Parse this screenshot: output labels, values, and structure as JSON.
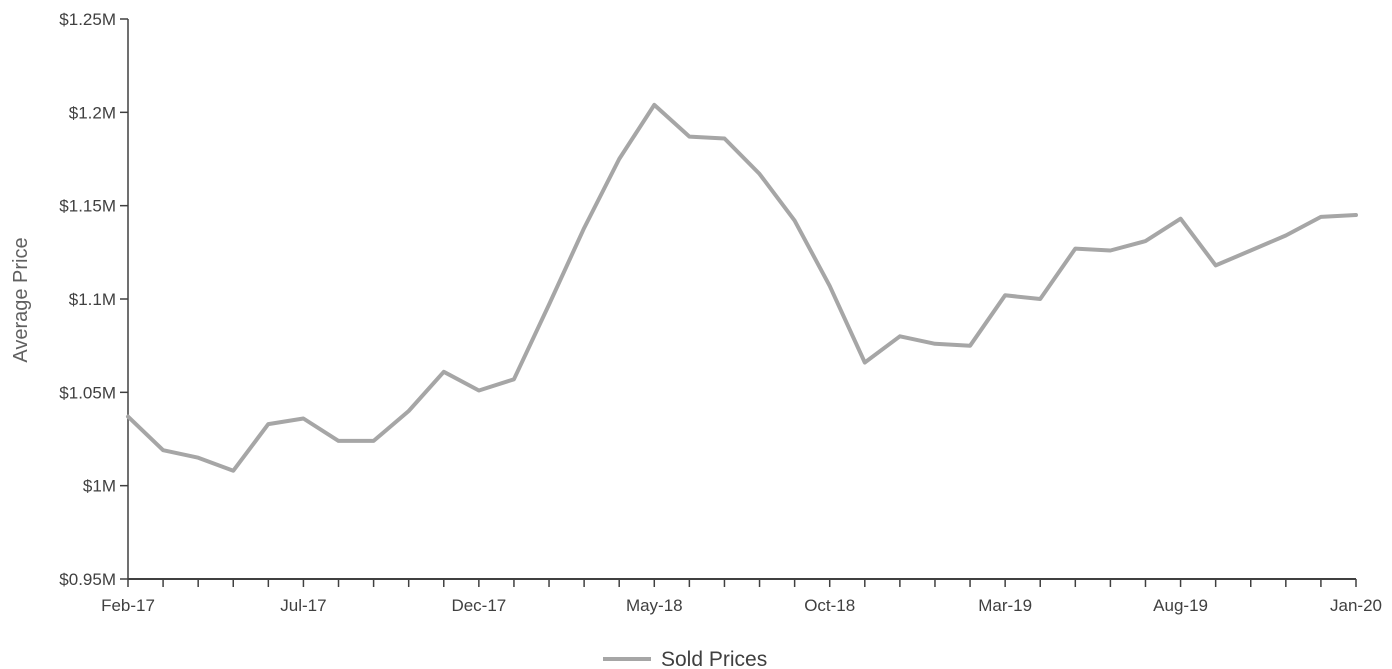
{
  "chart_data": {
    "type": "line",
    "ylabel": "Average Price",
    "xlabel": "",
    "ylim": [
      0.95,
      1.25
    ],
    "y_ticks": [
      {
        "value": 1.25,
        "label": "$1.25M"
      },
      {
        "value": 1.2,
        "label": "$1.2M"
      },
      {
        "value": 1.15,
        "label": "$1.15M"
      },
      {
        "value": 1.1,
        "label": "$1.1M"
      },
      {
        "value": 1.05,
        "label": "$1.05M"
      },
      {
        "value": 1.0,
        "label": "$1M"
      },
      {
        "value": 0.95,
        "label": "$0.95M"
      }
    ],
    "x": [
      "Feb-17",
      "Mar-17",
      "Apr-17",
      "May-17",
      "Jun-17",
      "Jul-17",
      "Aug-17",
      "Sep-17",
      "Oct-17",
      "Nov-17",
      "Dec-17",
      "Jan-18",
      "Feb-18",
      "Mar-18",
      "Apr-18",
      "May-18",
      "Jun-18",
      "Jul-18",
      "Aug-18",
      "Sep-18",
      "Oct-18",
      "Nov-18",
      "Dec-18",
      "Jan-19",
      "Feb-19",
      "Mar-19",
      "Apr-19",
      "May-19",
      "Jun-19",
      "Jul-19",
      "Aug-19",
      "Sep-19",
      "Oct-19",
      "Nov-19",
      "Dec-19",
      "Jan-20"
    ],
    "x_tick_labels": [
      {
        "index": 0,
        "label": "Feb-17"
      },
      {
        "index": 5,
        "label": "Jul-17"
      },
      {
        "index": 10,
        "label": "Dec-17"
      },
      {
        "index": 15,
        "label": "May-18"
      },
      {
        "index": 20,
        "label": "Oct-18"
      },
      {
        "index": 25,
        "label": "Mar-19"
      },
      {
        "index": 30,
        "label": "Aug-19"
      },
      {
        "index": 35,
        "label": "Jan-20"
      }
    ],
    "series": [
      {
        "name": "Sold Prices",
        "color": "#a6a6a6",
        "values": [
          1.037,
          1.019,
          1.015,
          1.008,
          1.033,
          1.036,
          1.024,
          1.024,
          1.04,
          1.061,
          1.051,
          1.057,
          1.097,
          1.138,
          1.175,
          1.204,
          1.187,
          1.186,
          1.167,
          1.142,
          1.107,
          1.066,
          1.08,
          1.076,
          1.075,
          1.102,
          1.1,
          1.127,
          1.126,
          1.131,
          1.143,
          1.118,
          1.126,
          1.134,
          1.144,
          1.145
        ]
      }
    ],
    "grid": false,
    "legend_position": "bottom"
  },
  "colors": {
    "axis": "#404040",
    "line": "#a6a6a6"
  }
}
